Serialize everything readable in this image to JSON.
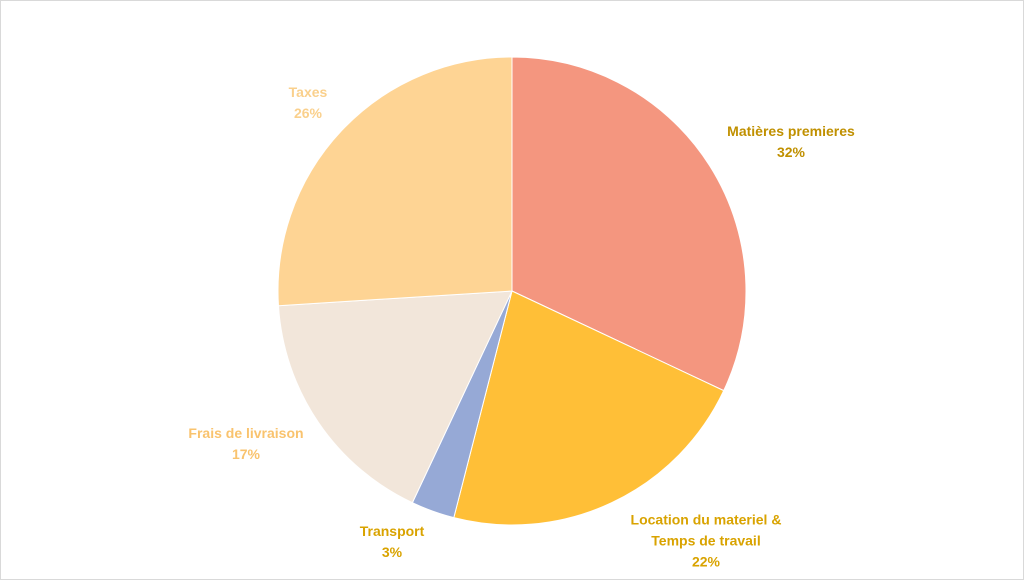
{
  "chart_data": {
    "type": "pie",
    "categories": [
      "Matières premieres",
      "Location du materiel & Temps de travail",
      "Transport",
      "Frais de livraison",
      "Taxes"
    ],
    "values": [
      32,
      22,
      3,
      17,
      26
    ],
    "value_labels": [
      "32%",
      "22%",
      "3%",
      "17%",
      "26%"
    ],
    "colors": [
      "#F4967F",
      "#FFBF37",
      "#96A9D6",
      "#F2E6DA",
      "#FED494"
    ],
    "label_colors": [
      "#C09000",
      "#D9A300",
      "#D9A300",
      "#F9C36E",
      "#FAD08C"
    ]
  }
}
